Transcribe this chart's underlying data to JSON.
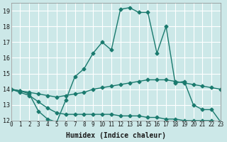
{
  "xlabel": "Humidex (Indice chaleur)",
  "bg_color": "#cce8e8",
  "grid_color": "#ffffff",
  "line_color": "#1a7a6e",
  "xlim": [
    0,
    23
  ],
  "ylim": [
    12,
    19.5
  ],
  "yticks": [
    12,
    13,
    14,
    15,
    16,
    17,
    18,
    19
  ],
  "xticks": [
    0,
    1,
    2,
    3,
    4,
    5,
    6,
    7,
    8,
    9,
    10,
    11,
    12,
    13,
    14,
    15,
    16,
    17,
    18,
    19,
    20,
    21,
    22,
    23
  ],
  "line1_x": [
    0,
    1,
    2,
    3,
    4,
    5,
    6,
    7,
    8,
    9,
    10,
    11,
    12,
    13,
    14,
    15,
    16,
    17,
    18,
    19,
    20,
    21,
    22,
    23
  ],
  "line1_y": [
    14.0,
    13.9,
    13.7,
    12.6,
    12.1,
    11.9,
    13.3,
    14.8,
    15.3,
    16.3,
    17.0,
    16.5,
    19.1,
    19.2,
    18.9,
    18.9,
    16.3,
    18.0,
    14.4,
    14.5,
    13.0,
    12.7,
    12.7,
    11.9
  ],
  "line2_x": [
    0,
    1,
    2,
    3,
    4,
    5,
    6,
    7,
    8,
    9,
    10,
    11,
    12,
    13,
    14,
    15,
    16,
    17,
    18,
    19,
    20,
    21,
    22,
    23
  ],
  "line2_y": [
    14.0,
    13.9,
    13.8,
    13.7,
    13.6,
    13.5,
    13.6,
    13.7,
    13.8,
    14.0,
    14.1,
    14.2,
    14.3,
    14.4,
    14.5,
    14.6,
    14.6,
    14.6,
    14.5,
    14.4,
    14.3,
    14.2,
    14.1,
    14.0
  ],
  "line3_x": [
    0,
    1,
    2,
    3,
    4,
    5,
    6,
    7,
    8,
    9,
    10,
    11,
    12,
    13,
    14,
    15,
    16,
    17,
    18,
    19,
    20,
    21,
    22,
    23
  ],
  "line3_y": [
    14.0,
    13.8,
    13.6,
    13.2,
    12.8,
    12.5,
    12.4,
    12.4,
    12.4,
    12.4,
    12.4,
    12.4,
    12.3,
    12.3,
    12.3,
    12.2,
    12.2,
    12.1,
    12.1,
    12.0,
    12.0,
    12.0,
    12.0,
    11.9
  ]
}
